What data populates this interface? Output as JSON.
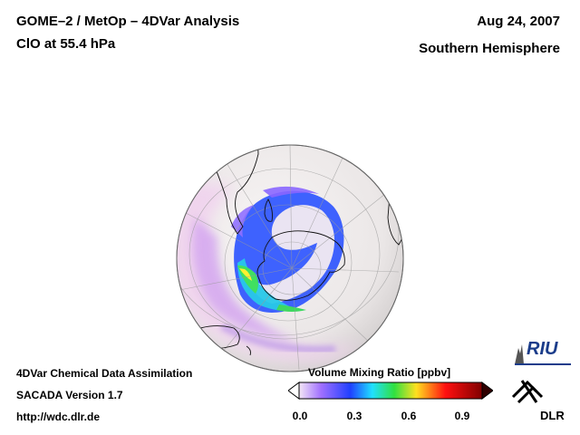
{
  "header": {
    "title_line1": "GOME–2 / MetOp – 4DVar Analysis",
    "title_line2": "ClO at 55.4 hPa",
    "date": "Aug 24, 2007",
    "region": "Southern Hemisphere"
  },
  "footer": {
    "line1": "4DVar Chemical Data Assimilation",
    "line2": "SACADA Version 1.7",
    "line3": "http://wdc.dlr.de"
  },
  "colorbar": {
    "title": "Volume Mixing Ratio [ppbv]",
    "ticks": [
      "0.0",
      "0.3",
      "0.6",
      "0.9"
    ],
    "colors": {
      "under": "#ffffff",
      "low": "#f3e6f5",
      "violet": "#a070ff",
      "blue": "#2040ff",
      "cyan": "#20e0ff",
      "green": "#30e040",
      "yellow": "#ffe020",
      "red": "#ff1010",
      "dark_red": "#800000",
      "over": "#300000"
    }
  },
  "map": {
    "projection": "orthographic",
    "hemisphere": "south"
  },
  "logos": {
    "riu": "RIU",
    "dlr": "DLR"
  }
}
